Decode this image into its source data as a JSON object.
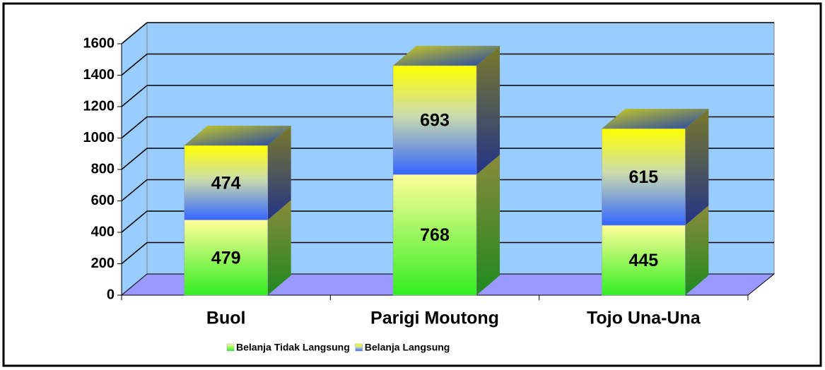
{
  "chart_data": {
    "type": "bar3d_stacked",
    "categories": [
      "Buol",
      "Parigi Moutong",
      "Tojo Una-Una"
    ],
    "series": [
      {
        "name": "Belanja Tidak Langsung",
        "color": "#33ee22",
        "values": [
          479,
          768,
          445
        ]
      },
      {
        "name": "Belanja Langsung",
        "color": "#3366ff",
        "values": [
          474,
          693,
          615
        ]
      }
    ],
    "ylim": [
      0,
      1600
    ],
    "yticks": [
      0,
      200,
      400,
      600,
      800,
      1000,
      1200,
      1400,
      1600
    ],
    "grid": true,
    "legend": "bottom"
  }
}
